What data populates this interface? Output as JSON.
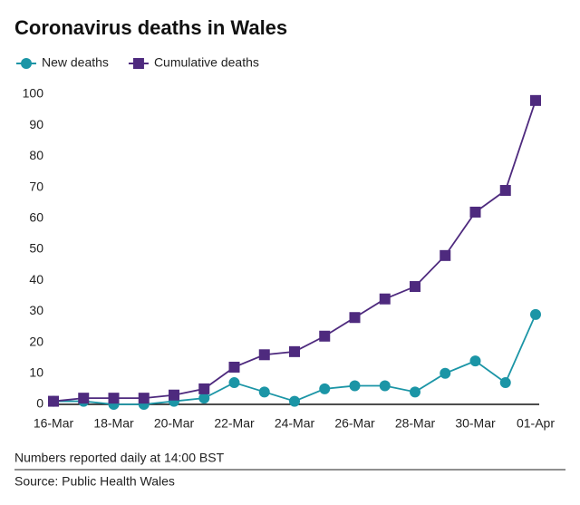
{
  "chart_data": {
    "type": "line",
    "title": "Coronavirus deaths in Wales",
    "categories": [
      "16-Mar",
      null,
      "18-Mar",
      null,
      "20-Mar",
      null,
      "22-Mar",
      null,
      "24-Mar",
      null,
      "26-Mar",
      null,
      "28-Mar",
      null,
      "30-Mar",
      null,
      "01-Apr"
    ],
    "series": [
      {
        "name": "New deaths",
        "color": "#1b95a6",
        "marker": "circle",
        "values": [
          1,
          1,
          0,
          0,
          1,
          2,
          7,
          4,
          1,
          5,
          6,
          6,
          4,
          10,
          14,
          7,
          29
        ]
      },
      {
        "name": "Cumulative deaths",
        "color": "#4e2a7e",
        "marker": "square",
        "values": [
          1,
          2,
          2,
          2,
          3,
          5,
          12,
          16,
          17,
          22,
          28,
          34,
          38,
          48,
          62,
          69,
          98
        ]
      }
    ],
    "ylim": [
      0,
      100
    ],
    "yticks": [
      0,
      10,
      20,
      30,
      40,
      50,
      60,
      70,
      80,
      90,
      100
    ],
    "grid": false,
    "legend": "top-left",
    "note": "Numbers reported daily at 14:00 BST",
    "source": "Source: Public Health Wales"
  }
}
